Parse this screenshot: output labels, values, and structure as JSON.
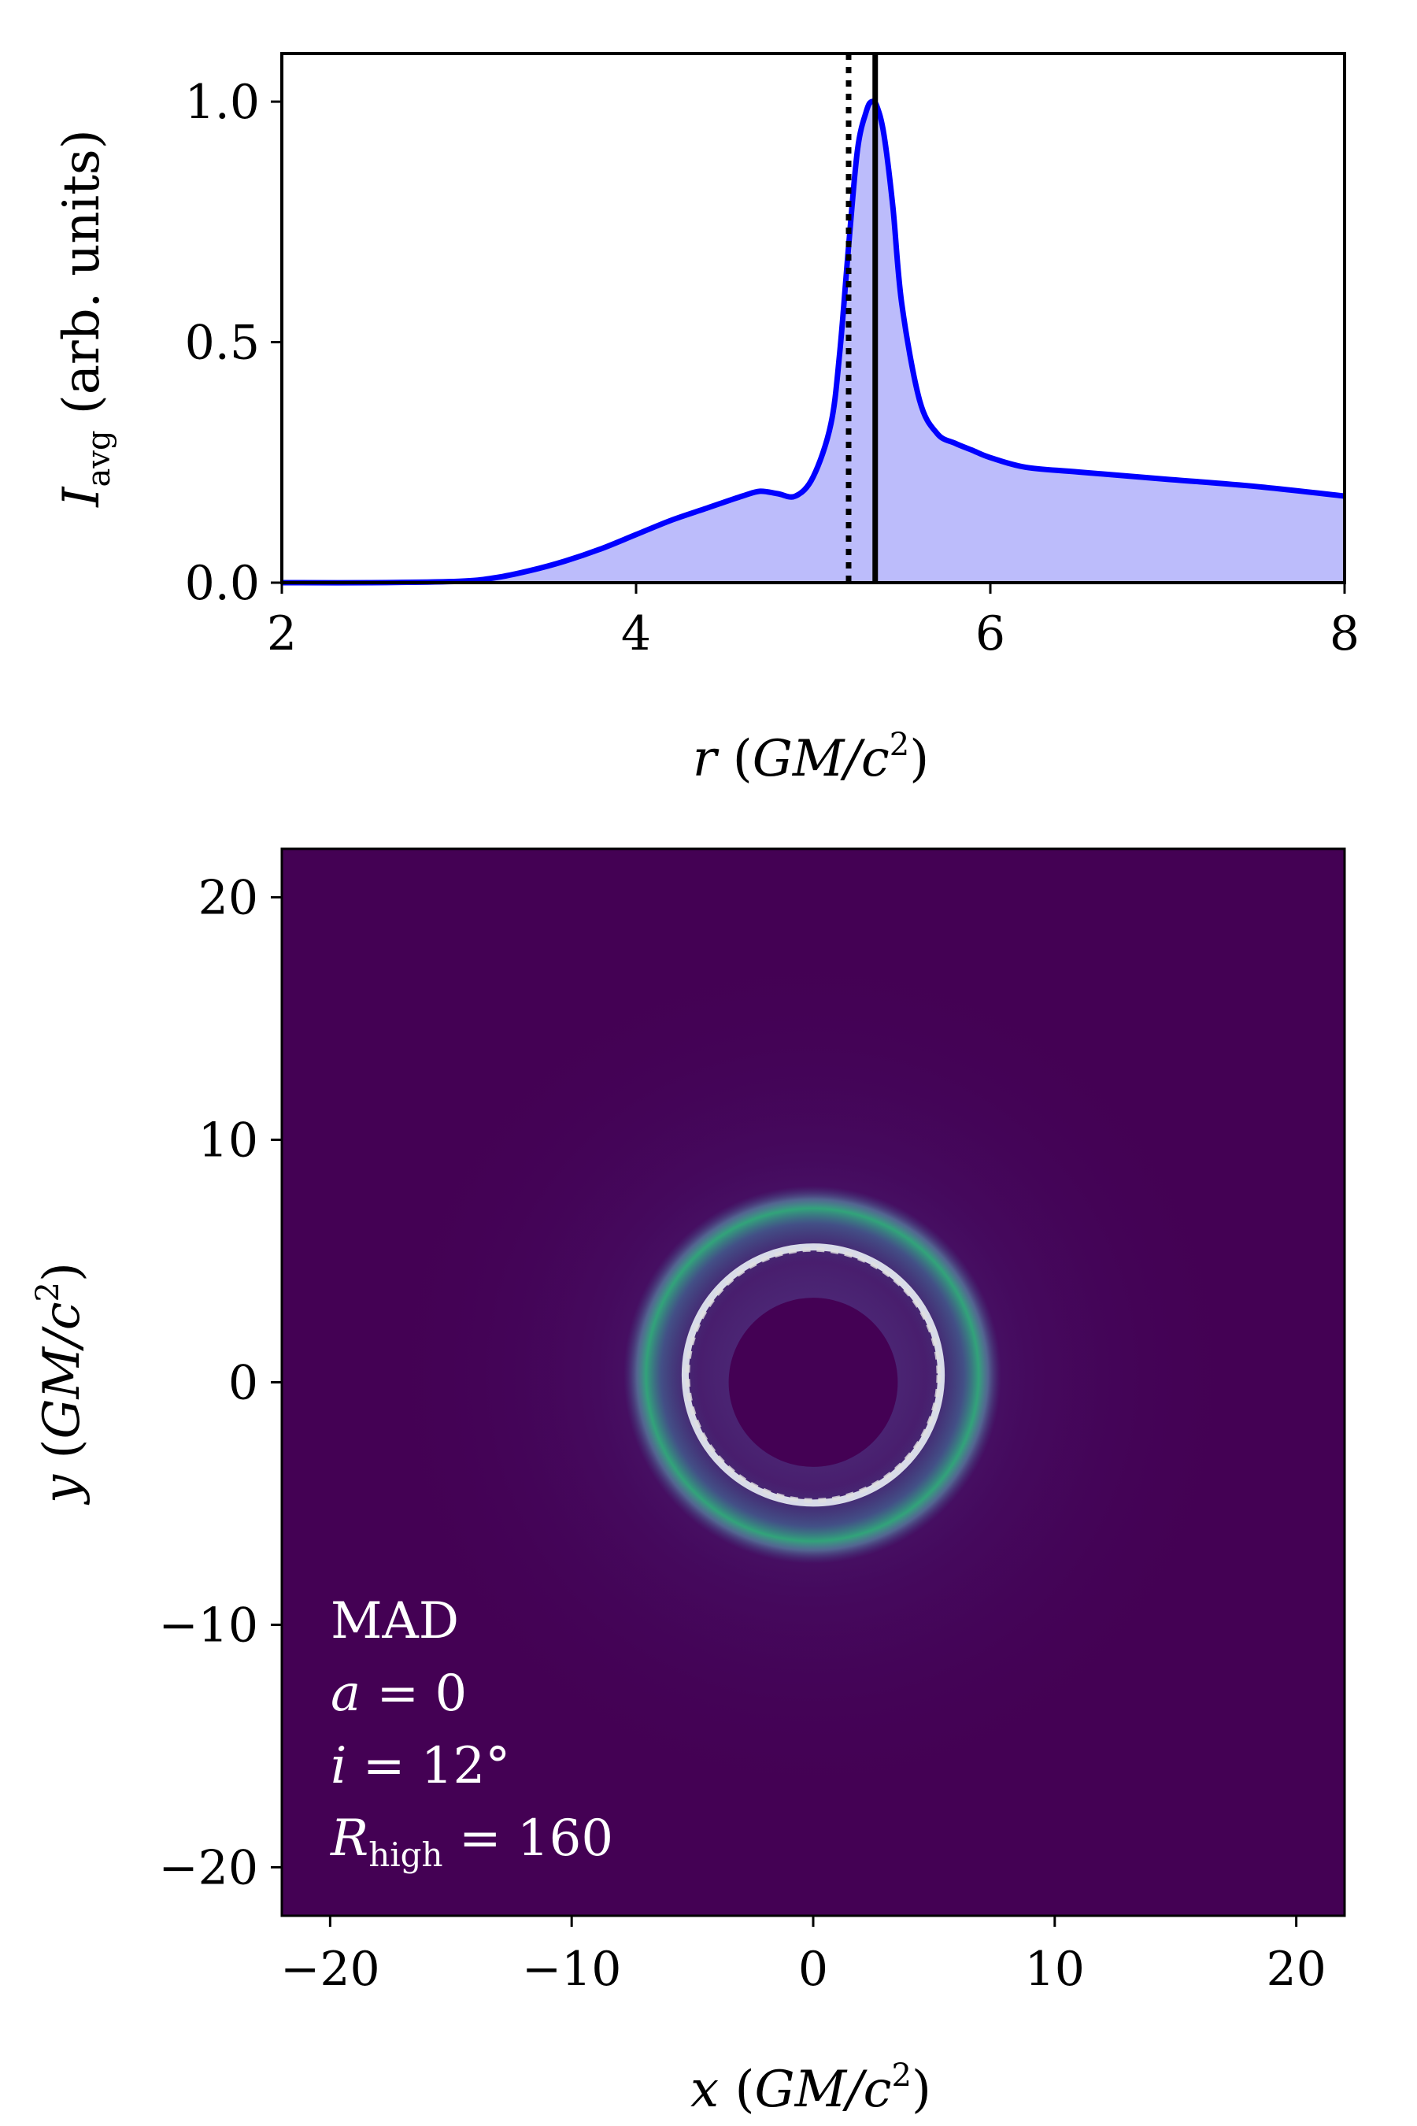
{
  "chart_data": [
    {
      "type": "area",
      "xlabel": {
        "var": "r",
        "open": " (",
        "units": "GM/c",
        "sup": "2",
        "close": ")"
      },
      "ylabel": {
        "var": "I",
        "sub": "avg",
        "rest": " (arb. units)"
      },
      "xlim": [
        2,
        8
      ],
      "ylim": [
        0,
        1.1
      ],
      "xticks": [
        2,
        4,
        6,
        8
      ],
      "yticks": [
        0.0,
        0.5,
        1.0
      ],
      "ytick_labels": [
        "0.0",
        "0.5",
        "1.0"
      ],
      "series": [
        {
          "color": "#0000ff",
          "fill_color": "#bcbcfb",
          "x": [
            2.0,
            2.5,
            3.0,
            3.2,
            3.4,
            3.6,
            3.8,
            4.0,
            4.2,
            4.4,
            4.6,
            4.7,
            4.8,
            4.9,
            5.0,
            5.1,
            5.15,
            5.2,
            5.25,
            5.3,
            5.33,
            5.36,
            5.4,
            5.45,
            5.5,
            5.6,
            5.7,
            5.8,
            5.9,
            6.0,
            6.2,
            6.5,
            7.0,
            7.5,
            8.0
          ],
          "y": [
            0.0,
            0.0,
            0.003,
            0.01,
            0.025,
            0.045,
            0.07,
            0.1,
            0.13,
            0.155,
            0.18,
            0.19,
            0.185,
            0.18,
            0.22,
            0.33,
            0.48,
            0.7,
            0.9,
            0.98,
            1.0,
            0.99,
            0.93,
            0.78,
            0.58,
            0.38,
            0.31,
            0.29,
            0.275,
            0.26,
            0.24,
            0.23,
            0.215,
            0.2,
            0.18
          ]
        }
      ],
      "vlines": [
        {
          "x": 5.2,
          "style": "dotted",
          "color": "#000000"
        },
        {
          "x": 5.35,
          "style": "solid",
          "color": "#000000"
        }
      ]
    },
    {
      "type": "heatmap",
      "colormap": "viridis",
      "xlabel": {
        "var": "x",
        "open": " (",
        "units": "GM/c",
        "sup": "2",
        "close": ")"
      },
      "ylabel": {
        "var": "y",
        "open": " (",
        "units": "GM/c",
        "sup": "2",
        "close": ")"
      },
      "xlim": [
        -22,
        22
      ],
      "ylim": [
        -22,
        22
      ],
      "xticks": [
        -20,
        -10,
        0,
        10,
        20
      ],
      "yticks": [
        -20,
        -10,
        0,
        10,
        20
      ],
      "xtick_labels": [
        "−20",
        "−10",
        "0",
        "10",
        "20"
      ],
      "ytick_labels": [
        "−20",
        "−10",
        "0",
        "10",
        "20"
      ],
      "ring": {
        "center": [
          0,
          0.3
        ],
        "radius": 5.3,
        "color": "#d8dbe8"
      },
      "ring_dashed": {
        "center": [
          0,
          0.3
        ],
        "radius": 5.2,
        "color": "#e0e0e0"
      },
      "shadow": {
        "center": [
          0,
          0
        ],
        "radius": 3.5
      },
      "annotation": {
        "line1": "MAD",
        "line2_var": "a",
        "line2_rest": " = 0",
        "line3_var": "i",
        "line3_rest": " = 12°",
        "line4_var": "R",
        "line4_sub": "high",
        "line4_rest": " = 160"
      }
    }
  ]
}
